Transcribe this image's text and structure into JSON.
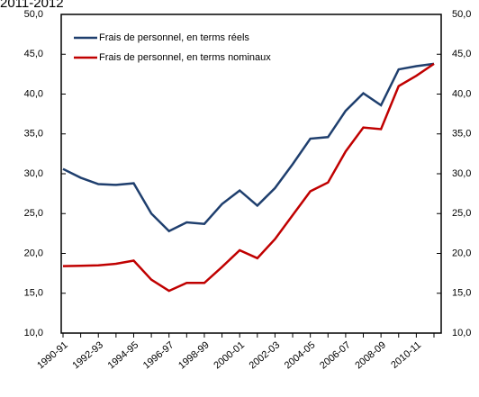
{
  "chart_data": {
    "type": "line",
    "title": "2011-2012",
    "categories": [
      "1990-91",
      null,
      "1992-93",
      null,
      "1994-95",
      null,
      "1996-97",
      null,
      "1998-99",
      null,
      "2000-01",
      null,
      "2002-03",
      null,
      "2004-05",
      null,
      "2006-07",
      null,
      "2008-09",
      null,
      "2010-11",
      null
    ],
    "series": [
      {
        "name": "Frais de personnel, en terms réels",
        "color": "#1f3f6e",
        "values": [
          30.6,
          29.5,
          28.7,
          28.6,
          28.8,
          25.0,
          22.8,
          23.9,
          23.7,
          26.2,
          27.9,
          26.0,
          28.2,
          31.2,
          34.4,
          34.6,
          37.9,
          40.1,
          38.6,
          43.1,
          43.5,
          43.8
        ]
      },
      {
        "name": "Frais de personnel, en terms nominaux",
        "color": "#c00000",
        "values": [
          18.4,
          18.45,
          18.5,
          18.7,
          19.1,
          16.7,
          15.3,
          16.3,
          16.3,
          18.3,
          20.4,
          19.4,
          21.8,
          24.8,
          27.8,
          28.9,
          32.8,
          35.8,
          35.6,
          41.0,
          42.3,
          43.8
        ]
      }
    ],
    "ylim": [
      10,
      50
    ],
    "yticks": [
      {
        "value": 10,
        "label": "10,0"
      },
      {
        "value": 15,
        "label": "15,0"
      },
      {
        "value": 20,
        "label": "20,0"
      },
      {
        "value": 25,
        "label": "25,0"
      },
      {
        "value": 30,
        "label": "30,0"
      },
      {
        "value": 35,
        "label": "35,0"
      },
      {
        "value": 40,
        "label": "40,0"
      },
      {
        "value": 45,
        "label": "45,0"
      },
      {
        "value": 50,
        "label": "50,0"
      }
    ],
    "y2lim": [
      10,
      50
    ],
    "y2ticks": [
      {
        "value": 10,
        "label": "10,0"
      },
      {
        "value": 15,
        "label": "15,0"
      },
      {
        "value": 20,
        "label": "20,0"
      },
      {
        "value": 25,
        "label": "25,0"
      },
      {
        "value": 30,
        "label": "30,0"
      },
      {
        "value": 35,
        "label": "35,0"
      },
      {
        "value": 40,
        "label": "40,0"
      },
      {
        "value": 45,
        "label": "45,0"
      },
      {
        "value": 50,
        "label": "50,0"
      }
    ],
    "legend": "upper left",
    "grid": false
  }
}
